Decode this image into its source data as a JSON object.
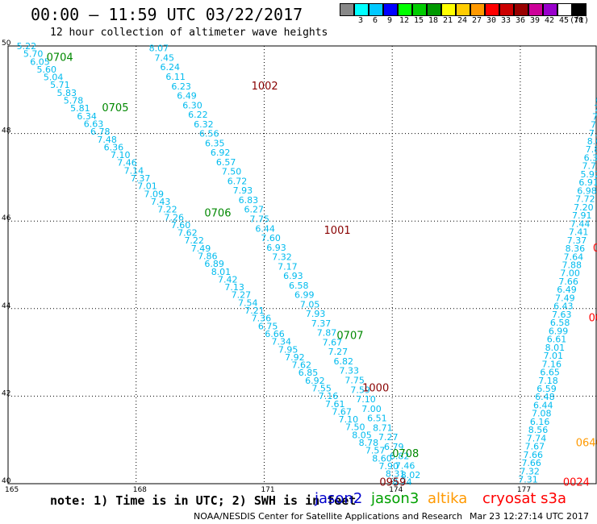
{
  "title": "00:00 – 11:59 UTC 03/22/2017",
  "subtitle": "12 hour collection of altimeter wave heights",
  "color_scale": {
    "unit": "(ft)",
    "bins": [
      {
        "label": "",
        "color": "#888888"
      },
      {
        "label": "3",
        "color": "#00ffff"
      },
      {
        "label": "6",
        "color": "#00c8ff"
      },
      {
        "label": "9",
        "color": "#0000ff"
      },
      {
        "label": "12",
        "color": "#00ff00"
      },
      {
        "label": "15",
        "color": "#00cc00"
      },
      {
        "label": "18",
        "color": "#009900"
      },
      {
        "label": "21",
        "color": "#ffff00"
      },
      {
        "label": "24",
        "color": "#ffcc00"
      },
      {
        "label": "27",
        "color": "#ff9900"
      },
      {
        "label": "30",
        "color": "#ff0000"
      },
      {
        "label": "33",
        "color": "#cc0000"
      },
      {
        "label": "36",
        "color": "#990000"
      },
      {
        "label": "39",
        "color": "#cc0099"
      },
      {
        "label": "42",
        "color": "#9900cc"
      },
      {
        "label": "45",
        "color": "#ffffff"
      },
      {
        "label": "70",
        "color": "#000000"
      }
    ]
  },
  "note": "note: 1) Time is in UTC; 2) SWH is in feet",
  "legend": [
    {
      "label": "jason2",
      "color": "#0000cc"
    },
    {
      "label": "jason3",
      "color": "#00a000"
    },
    {
      "label": "altika",
      "color": "#ff9900"
    },
    {
      "label": "cryosat s3a",
      "color": "#ff0000"
    }
  ],
  "footer_left": "NOAA/NESDIS Center for Satellite Applications and Research",
  "footer_right": "Mar 23 12:27:14 UTC 2017",
  "chart_data": {
    "type": "scatter",
    "title": "12 hour collection of altimeter wave heights",
    "xlabel": "",
    "ylabel": "",
    "xlim": [
      165,
      179
    ],
    "ylim": [
      40,
      50
    ],
    "x_ticks": [
      "165",
      "168",
      "171",
      "174",
      "177"
    ],
    "y_ticks": [
      "50",
      "48",
      "46",
      "44",
      "42",
      "40"
    ],
    "grid": true,
    "tracks": [
      {
        "name": "track-0704",
        "color": "#00bbee",
        "start": [
          165.2,
          50.0
        ],
        "end": [
          174.0,
          40.05
        ],
        "values": [
          "5.22",
          "5.70",
          "6.05",
          "5.60",
          "5.04",
          "5.71",
          "5.83",
          "5.78",
          "5.81",
          "6.34",
          "6.63",
          "6.78",
          "7.48",
          "6.36",
          "7.10",
          "7.46",
          "7.14",
          "7.37",
          "7.01",
          "7.09",
          "7.43",
          "7.22",
          "7.26",
          "7.60",
          "7.62",
          "7.22",
          "7.49",
          "7.86",
          "6.89",
          "8.01",
          "7.42",
          "7.13",
          "7.27",
          "7.54",
          "7.21",
          "7.36",
          "6.75",
          "6.66",
          "7.34",
          "7.95",
          "7.92",
          "7.62",
          "6.85",
          "6.92",
          "7.55",
          "7.16",
          "7.61",
          "7.67",
          "7.10",
          "7.50",
          "8.05",
          "8.78",
          "7.57",
          "8.60",
          "7.90",
          "8.31",
          "8.74"
        ]
      },
      {
        "name": "track-1002",
        "color": "#00bbee",
        "start": [
          168.3,
          49.95
        ],
        "end": [
          174.2,
          40.2
        ],
        "values": [
          "8.07",
          "7.45",
          "6.24",
          "6.11",
          "6.23",
          "6.49",
          "6.30",
          "6.22",
          "6.32",
          "6.56",
          "6.35",
          "6.92",
          "6.57",
          "7.50",
          "6.72",
          "7.93",
          "6.83",
          "6.27",
          "7.75",
          "6.44",
          "7.60",
          "6.93",
          "7.32",
          "7.17",
          "6.93",
          "6.58",
          "6.99",
          "7.05",
          "7.93",
          "7.37",
          "7.87",
          "7.67",
          "7.27",
          "6.82",
          "7.33",
          "7.75",
          "7.59",
          "7.10",
          "7.00",
          "6.51",
          "8.71",
          "7.27",
          "6.79",
          "6.82",
          "7.46",
          "8.02"
        ]
      },
      {
        "name": "track-0024",
        "color": "#00bbee",
        "start": [
          176.95,
          40.1
        ],
        "end": [
          179.0,
          49.9
        ],
        "values": [
          "7.31",
          "7.32",
          "7.66",
          "7.66",
          "7.67",
          "7.74",
          "8.56",
          "6.16",
          "7.08",
          "6.44",
          "6.48",
          "6.59",
          "7.18",
          "6.65",
          "7.16",
          "7.01",
          "8.01",
          "6.61",
          "6.99",
          "6.58",
          "7.63",
          "6.43",
          "7.49",
          "6.49",
          "7.66",
          "7.00",
          "7.88",
          "7.64",
          "8.36",
          "7.37",
          "7.41",
          "7.44",
          "7.91",
          "7.20",
          "7.72",
          "6.98",
          "6.91",
          "5.92",
          "7.72",
          "6.30",
          "7.81",
          "8.08",
          "7.58",
          "7.12",
          "7.45",
          "7.39",
          "6.90",
          "8.11",
          "7.75",
          "6.92",
          "7.40",
          "7.07",
          "7.6"
        ]
      }
    ],
    "time_labels": [
      {
        "text": "0704",
        "lon": 165.9,
        "lat": 49.75,
        "color": "#008800"
      },
      {
        "text": "0705",
        "lon": 167.2,
        "lat": 48.6,
        "color": "#008800"
      },
      {
        "text": "0706",
        "lon": 169.6,
        "lat": 46.2,
        "color": "#008800"
      },
      {
        "text": "0707",
        "lon": 172.7,
        "lat": 43.4,
        "color": "#008800"
      },
      {
        "text": "0708",
        "lon": 174.0,
        "lat": 40.7,
        "color": "#008800"
      },
      {
        "text": "1002",
        "lon": 170.7,
        "lat": 49.1,
        "color": "#880000"
      },
      {
        "text": "1001",
        "lon": 172.4,
        "lat": 45.8,
        "color": "#880000"
      },
      {
        "text": "1000",
        "lon": 173.3,
        "lat": 42.2,
        "color": "#880000"
      },
      {
        "text": "0959",
        "lon": 173.7,
        "lat": 40.05,
        "color": "#880000"
      },
      {
        "text": "0640",
        "lon": 178.3,
        "lat": 40.95,
        "color": "#ff9900"
      },
      {
        "text": "0024",
        "lon": 178.0,
        "lat": 40.05,
        "color": "#ff0000"
      },
      {
        "text": "002",
        "lon": 178.6,
        "lat": 43.8,
        "color": "#ff0000"
      },
      {
        "text": "00",
        "lon": 178.7,
        "lat": 45.4,
        "color": "#ff0000"
      }
    ]
  }
}
